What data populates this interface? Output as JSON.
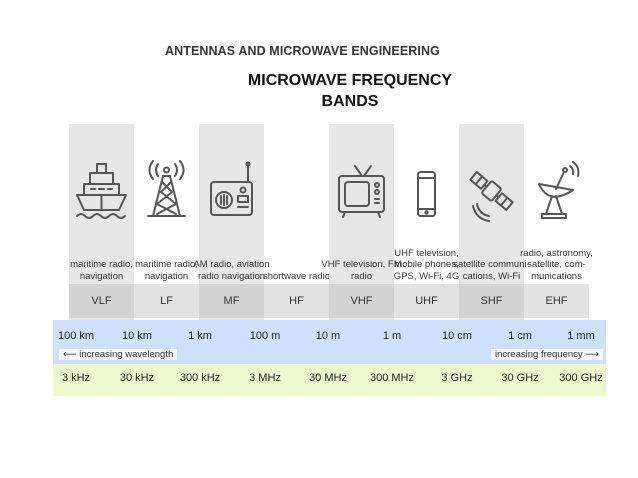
{
  "header": {
    "course": "ANTENNAS AND MICROWAVE ENGINEERING",
    "title_line1": "MICROWAVE FREQUENCY",
    "title_line2": "BANDS"
  },
  "bands": [
    {
      "code": "VLF",
      "desc": "maritime radio, navigation",
      "icon": "ship-icon"
    },
    {
      "code": "LF",
      "desc": "maritime radio, navigation",
      "icon": "radio-tower-icon"
    },
    {
      "code": "MF",
      "desc": "AM radio, aviation radio navigation",
      "icon": "radio-receiver-icon"
    },
    {
      "code": "HF",
      "desc": "shortwave radio",
      "icon": ""
    },
    {
      "code": "VHF",
      "desc": "VHF television, FM radio",
      "icon": "television-icon"
    },
    {
      "code": "UHF",
      "desc": "UHF television, mobile phones, GPS, Wi-Fi, 4G",
      "icon": "mobile-phone-icon"
    },
    {
      "code": "SHF",
      "desc": "satellite communi-cations, Wi-Fi",
      "icon": "satellite-icon"
    },
    {
      "code": "EHF",
      "desc": "radio, astronomy, satellite, com-munications",
      "icon": "satellite-dish-icon"
    }
  ],
  "wavelengths": [
    "100 km",
    "10 km",
    "1 km",
    "100 m",
    "10 m",
    "1 m",
    "10 cm",
    "1 cm",
    "1 mm"
  ],
  "frequencies": [
    "3 kHz",
    "30 kHz",
    "300 kHz",
    "3 MHz",
    "30 MHz",
    "300 MHz",
    "3 GHz",
    "30 GHz",
    "300 GHz"
  ],
  "labels": {
    "increasing_wavelength": "increasing wavelength",
    "increasing_frequency": "increasing frequency"
  },
  "colors": {
    "wavelength_row": "#cfe0ff",
    "frequency_row": "#eef8cf",
    "band_shade": "#e6e6e6",
    "code_shade": "#d3d3d3",
    "icon_stroke": "#555555"
  }
}
